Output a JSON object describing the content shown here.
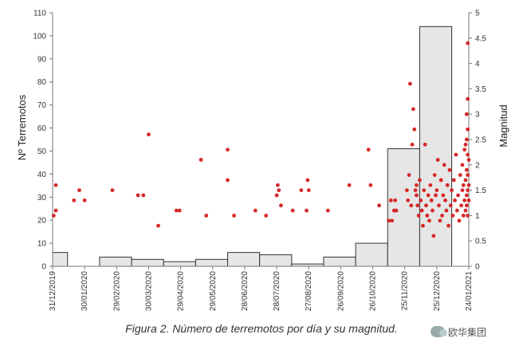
{
  "chart_data": {
    "type": "bar+scatter",
    "title": "",
    "ylabel": "Nº Terremotos",
    "y2label": "Magnitud",
    "ylim": [
      0,
      110
    ],
    "yticks": [
      0,
      10,
      20,
      30,
      40,
      50,
      60,
      70,
      80,
      90,
      100,
      110
    ],
    "y2lim": [
      0,
      5
    ],
    "y2ticks": [
      "0",
      "0.5",
      "1",
      "1.5",
      "2",
      "2.5",
      "3",
      "3.5",
      "4",
      "4.5",
      "5"
    ],
    "date_ticks": [
      "31/12/2019",
      "30/01/2020",
      "29/02/2020",
      "30/03/2020",
      "29/04/2020",
      "29/05/2020",
      "28/06/2020",
      "28/07/2020",
      "27/08/2020",
      "26/09/2020",
      "26/10/2020",
      "25/11/2020",
      "25/12/2020",
      "24/01/2021"
    ],
    "series": [
      {
        "kind": "bar",
        "axis": "left",
        "color": "#e6e6e6",
        "bins": [
          {
            "start": "31/12/2019",
            "end": "14/01/2020",
            "value": 6
          },
          {
            "start": "14/01/2020",
            "end": "29/01/2020",
            "value": 0
          },
          {
            "start": "29/01/2020",
            "end": "13/02/2020",
            "value": 0
          },
          {
            "start": "13/02/2020",
            "end": "14/03/2020",
            "value": 4
          },
          {
            "start": "14/03/2020",
            "end": "13/04/2020",
            "value": 3
          },
          {
            "start": "13/04/2020",
            "end": "13/05/2020",
            "value": 2
          },
          {
            "start": "13/05/2020",
            "end": "12/06/2020",
            "value": 3
          },
          {
            "start": "12/06/2020",
            "end": "12/07/2020",
            "value": 6
          },
          {
            "start": "12/07/2020",
            "end": "11/08/2020",
            "value": 5
          },
          {
            "start": "11/08/2020",
            "end": "10/09/2020",
            "value": 1
          },
          {
            "start": "10/09/2020",
            "end": "10/10/2020",
            "value": 4
          },
          {
            "start": "10/10/2020",
            "end": "09/11/2020",
            "value": 10
          },
          {
            "start": "09/11/2020",
            "end": "09/12/2020",
            "value": 51
          },
          {
            "start": "09/12/2020",
            "end": "08/01/2021",
            "value": 104
          }
        ]
      },
      {
        "kind": "scatter",
        "axis": "right",
        "color": "#d62728",
        "points": [
          [
            "01/01/2020",
            1.0
          ],
          [
            "03/01/2020",
            1.1
          ],
          [
            "03/01/2020",
            1.6
          ],
          [
            "20/01/2020",
            1.3
          ],
          [
            "25/01/2020",
            1.5
          ],
          [
            "30/01/2020",
            1.3
          ],
          [
            "25/02/2020",
            1.5
          ],
          [
            "20/03/2020",
            1.4
          ],
          [
            "25/03/2020",
            1.4
          ],
          [
            "30/03/2020",
            2.6
          ],
          [
            "08/04/2020",
            0.8
          ],
          [
            "25/04/2020",
            1.1
          ],
          [
            "28/04/2020",
            1.1
          ],
          [
            "18/05/2020",
            2.1
          ],
          [
            "23/05/2020",
            1.0
          ],
          [
            "12/06/2020",
            2.3
          ],
          [
            "12/06/2020",
            1.7
          ],
          [
            "18/06/2020",
            1.0
          ],
          [
            "08/07/2020",
            1.1
          ],
          [
            "18/07/2020",
            1.0
          ],
          [
            "28/07/2020",
            1.4
          ],
          [
            "29/07/2020",
            1.6
          ],
          [
            "30/07/2020",
            1.5
          ],
          [
            "01/08/2020",
            1.2
          ],
          [
            "12/08/2020",
            1.1
          ],
          [
            "20/08/2020",
            1.5
          ],
          [
            "25/08/2020",
            1.1
          ],
          [
            "26/08/2020",
            1.7
          ],
          [
            "27/08/2020",
            1.5
          ],
          [
            "14/09/2020",
            1.1
          ],
          [
            "04/10/2020",
            1.6
          ],
          [
            "22/10/2020",
            2.3
          ],
          [
            "24/10/2020",
            1.6
          ],
          [
            "01/11/2020",
            1.2
          ],
          [
            "10/11/2020",
            0.9
          ],
          [
            "12/11/2020",
            1.3
          ],
          [
            "13/11/2020",
            0.9
          ],
          [
            "15/11/2020",
            1.1
          ],
          [
            "16/11/2020",
            1.3
          ],
          [
            "17/11/2020",
            1.1
          ],
          [
            "27/11/2020",
            1.5
          ],
          [
            "28/11/2020",
            1.3
          ],
          [
            "29/11/2020",
            1.8
          ],
          [
            "30/11/2020",
            3.6
          ],
          [
            "01/12/2020",
            1.2
          ],
          [
            "02/12/2020",
            2.4
          ],
          [
            "03/12/2020",
            3.1
          ],
          [
            "04/12/2020",
            2.7
          ],
          [
            "05/12/2020",
            1.5
          ],
          [
            "06/12/2020",
            1.4
          ],
          [
            "06/12/2020",
            1.6
          ],
          [
            "07/12/2020",
            1.2
          ],
          [
            "08/12/2020",
            1.0
          ],
          [
            "09/12/2020",
            1.7
          ],
          [
            "10/12/2020",
            1.3
          ],
          [
            "11/12/2020",
            1.1
          ],
          [
            "12/12/2020",
            0.8
          ],
          [
            "13/12/2020",
            1.5
          ],
          [
            "14/12/2020",
            2.4
          ],
          [
            "15/12/2020",
            1.2
          ],
          [
            "16/12/2020",
            1.0
          ],
          [
            "17/12/2020",
            1.4
          ],
          [
            "18/12/2020",
            0.9
          ],
          [
            "19/12/2020",
            1.6
          ],
          [
            "20/12/2020",
            1.3
          ],
          [
            "21/12/2020",
            1.1
          ],
          [
            "22/12/2020",
            0.6
          ],
          [
            "23/12/2020",
            1.8
          ],
          [
            "24/12/2020",
            1.4
          ],
          [
            "25/12/2020",
            1.5
          ],
          [
            "26/12/2020",
            2.1
          ],
          [
            "27/12/2020",
            1.2
          ],
          [
            "28/12/2020",
            0.9
          ],
          [
            "29/12/2020",
            1.7
          ],
          [
            "30/12/2020",
            1.0
          ],
          [
            "31/12/2020",
            1.4
          ],
          [
            "01/01/2021",
            2.0
          ],
          [
            "02/01/2021",
            1.3
          ],
          [
            "03/01/2021",
            1.1
          ],
          [
            "04/01/2021",
            1.6
          ],
          [
            "05/01/2021",
            0.8
          ],
          [
            "06/01/2021",
            1.9
          ],
          [
            "07/01/2021",
            1.2
          ],
          [
            "08/01/2021",
            1.5
          ],
          [
            "09/01/2021",
            1.0
          ],
          [
            "10/01/2021",
            1.7
          ],
          [
            "11/01/2021",
            1.3
          ],
          [
            "12/01/2021",
            2.2
          ],
          [
            "13/01/2021",
            1.1
          ],
          [
            "14/01/2021",
            1.4
          ],
          [
            "15/01/2021",
            0.9
          ],
          [
            "16/01/2021",
            1.8
          ],
          [
            "17/01/2021",
            1.2
          ],
          [
            "18/01/2021",
            1.5
          ],
          [
            "18/01/2021",
            2.0
          ],
          [
            "19/01/2021",
            1.0
          ],
          [
            "19/01/2021",
            1.6
          ],
          [
            "20/01/2021",
            2.3
          ],
          [
            "20/01/2021",
            1.3
          ],
          [
            "21/01/2021",
            2.4
          ],
          [
            "21/01/2021",
            1.1
          ],
          [
            "21/01/2021",
            1.7
          ],
          [
            "22/01/2021",
            3.0
          ],
          [
            "22/01/2021",
            2.5
          ],
          [
            "22/01/2021",
            1.9
          ],
          [
            "22/01/2021",
            1.4
          ],
          [
            "22/01/2021",
            1.2
          ],
          [
            "23/01/2021",
            4.4
          ],
          [
            "23/01/2021",
            3.3
          ],
          [
            "23/01/2021",
            2.7
          ],
          [
            "23/01/2021",
            2.2
          ],
          [
            "23/01/2021",
            1.8
          ],
          [
            "23/01/2021",
            1.5
          ],
          [
            "23/01/2021",
            1.0
          ],
          [
            "24/01/2021",
            2.1
          ],
          [
            "24/01/2021",
            1.6
          ],
          [
            "24/01/2021",
            1.3
          ]
        ]
      }
    ],
    "grid": false
  },
  "caption": "Figura 2. Número de terremotos por día y su magnitud.",
  "watermark": {
    "text": "欧华集团",
    "icon": "wechat-icon"
  }
}
